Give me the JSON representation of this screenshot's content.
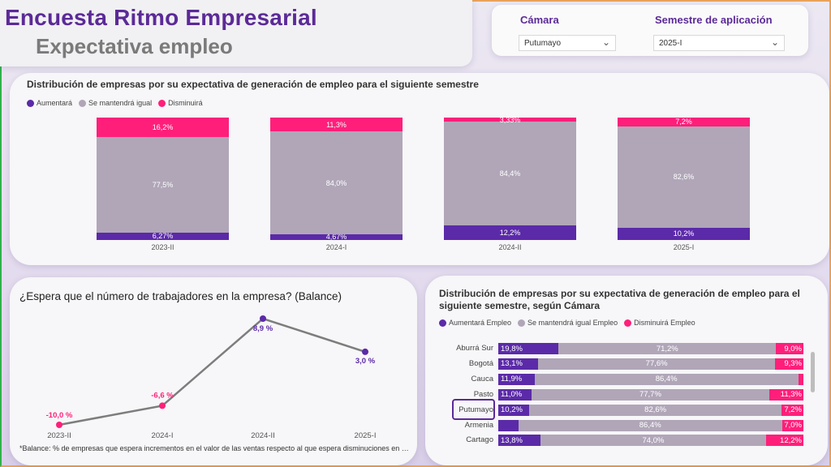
{
  "header": {
    "title": "Encuesta Ritmo Empresarial",
    "subtitle": "Expectativa empleo"
  },
  "filters": {
    "camara_label": "Cámara",
    "camara_value": "Putumayo",
    "semestre_label": "Semestre de aplicación",
    "semestre_value": "2025-I"
  },
  "colors": {
    "aumentara": "#5b2aa8",
    "igual": "#b0a6b8",
    "disminuira": "#ff1f7a",
    "brand": "#5b2a97"
  },
  "chart_data": [
    {
      "type": "bar",
      "stacked": true,
      "title": "Distribución de empresas por su expectativa de generación de empleo para el siguiente semestre",
      "categories": [
        "2023-II",
        "2024-I",
        "2024-II",
        "2025-I"
      ],
      "series": [
        {
          "name": "Aumentará",
          "values": [
            6.27,
            4.67,
            12.2,
            10.2
          ],
          "labels": [
            "6,27%",
            "4,67%",
            "12,2%",
            "10,2%"
          ]
        },
        {
          "name": "Se mantendrá igual",
          "values": [
            77.5,
            84.0,
            84.4,
            82.6
          ],
          "labels": [
            "77,5%",
            "84,0%",
            "84,4%",
            "82,6%"
          ]
        },
        {
          "name": "Disminuirá",
          "values": [
            16.2,
            11.3,
            3.33,
            7.2
          ],
          "labels": [
            "16,2%",
            "11,3%",
            "3,33%",
            "7,2%"
          ]
        }
      ]
    },
    {
      "type": "line",
      "title": "¿Espera que el número de trabajadores en la empresa? (Balance)",
      "x": [
        "2023-II",
        "2024-I",
        "2024-II",
        "2025-I"
      ],
      "values": [
        -10.0,
        -6.6,
        8.9,
        3.0
      ],
      "labels": [
        "-10,0 %",
        "-6,6 %",
        "8,9 %",
        "3,0 %"
      ],
      "note": "*Balance: % de empresas que espera incrementos en el valor de las ventas respecto al que espera disminuciones en el valor de las ventas."
    },
    {
      "type": "bar",
      "orientation": "horizontal",
      "stacked": true,
      "title": "Distribución de empresas por su expectativa de generación de empleo para el siguiente semestre, según Cámara",
      "categories": [
        "Aburrá Sur",
        "Bogotá",
        "Cauca",
        "Pasto",
        "Putumayo",
        "Armenia",
        "Cartago"
      ],
      "selected": "Putumayo",
      "series": [
        {
          "name": "Aumentará Empleo",
          "values": [
            19.8,
            13.1,
            11.9,
            11.0,
            10.2,
            6.6,
            13.8
          ],
          "labels": [
            "19,8%",
            "13,1%",
            "11,9%",
            "11,0%",
            "10,2%",
            "",
            "13,8%"
          ]
        },
        {
          "name": "Se mantendrá igual Empleo",
          "values": [
            71.2,
            77.6,
            86.4,
            77.7,
            82.6,
            86.4,
            74.0
          ],
          "labels": [
            "71,2%",
            "77,6%",
            "86,4%",
            "77,7%",
            "82,6%",
            "86,4%",
            "74,0%"
          ]
        },
        {
          "name": "Disminuirá Empleo",
          "values": [
            9.0,
            9.3,
            1.7,
            11.3,
            7.2,
            7.0,
            12.2
          ],
          "labels": [
            "9,0%",
            "9,3%",
            "",
            "11,3%",
            "7,2%",
            "7,0%",
            "12,2%"
          ]
        }
      ]
    }
  ]
}
